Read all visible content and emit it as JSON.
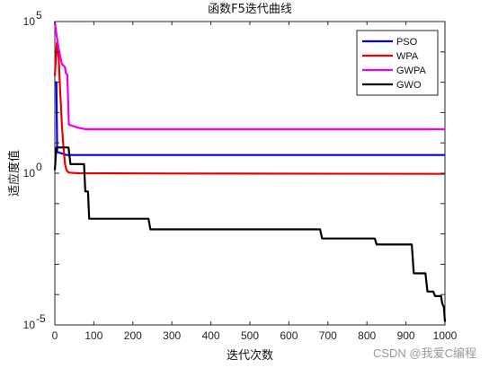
{
  "chart_data": {
    "type": "line",
    "title": "函数F5迭代曲线",
    "xlabel": "迭代次数",
    "ylabel": "适应度值",
    "xlim": [
      0,
      1000
    ],
    "ylim_log10": [
      -5,
      5
    ],
    "yscale": "log",
    "x_ticks": [
      "0",
      "100",
      "200",
      "300",
      "400",
      "500",
      "600",
      "700",
      "800",
      "900",
      "1000"
    ],
    "y_ticks": [
      {
        "base": "10",
        "exp": "5",
        "log": 5
      },
      {
        "base": "10",
        "exp": "0",
        "log": 0
      },
      {
        "base": "10",
        "exp": "-5",
        "log": -5
      }
    ],
    "legend_position": "top-right",
    "grid": false,
    "series": [
      {
        "name": "PSO",
        "color": "#0000ee",
        "points": [
          [
            0,
            3
          ],
          [
            4,
            3
          ],
          [
            6,
            0.7
          ],
          [
            30,
            0.6
          ],
          [
            100,
            0.6
          ],
          [
            1000,
            0.6
          ]
        ]
      },
      {
        "name": "WPA",
        "color": "#ee0000",
        "points": [
          [
            0,
            3.2
          ],
          [
            5,
            4.3
          ],
          [
            10,
            3.8
          ],
          [
            14,
            2.6
          ],
          [
            16,
            2.2
          ],
          [
            18,
            1.6
          ],
          [
            22,
            0.9
          ],
          [
            26,
            0.3
          ],
          [
            30,
            0.1
          ],
          [
            36,
            0.02
          ],
          [
            60,
            0.0
          ],
          [
            300,
            -0.01
          ],
          [
            1000,
            -0.02
          ]
        ]
      },
      {
        "name": "GWPA",
        "color": "#ee00ee",
        "points": [
          [
            0,
            5
          ],
          [
            4,
            4.6
          ],
          [
            10,
            4.1
          ],
          [
            18,
            3.6
          ],
          [
            26,
            3.5
          ],
          [
            28,
            3.3
          ],
          [
            32,
            3.25
          ],
          [
            36,
            1.6
          ],
          [
            60,
            1.5
          ],
          [
            80,
            1.45
          ],
          [
            1000,
            1.45
          ]
        ]
      },
      {
        "name": "GWO",
        "color": "#000000",
        "points": [
          [
            0,
            0.1
          ],
          [
            4,
            0.85
          ],
          [
            35,
            0.85
          ],
          [
            40,
            0.3
          ],
          [
            75,
            0.3
          ],
          [
            78,
            -0.6
          ],
          [
            85,
            -0.6
          ],
          [
            88,
            -1.5
          ],
          [
            240,
            -1.5
          ],
          [
            245,
            -1.85
          ],
          [
            680,
            -1.85
          ],
          [
            685,
            -2.15
          ],
          [
            820,
            -2.15
          ],
          [
            825,
            -2.35
          ],
          [
            915,
            -2.35
          ],
          [
            920,
            -3.3
          ],
          [
            950,
            -3.3
          ],
          [
            955,
            -3.9
          ],
          [
            970,
            -3.9
          ],
          [
            975,
            -4.05
          ],
          [
            990,
            -4.05
          ],
          [
            993,
            -4.3
          ],
          [
            997,
            -4.4
          ],
          [
            1000,
            -4.9
          ]
        ]
      }
    ]
  },
  "watermark": "CSDN @我爱C编程"
}
